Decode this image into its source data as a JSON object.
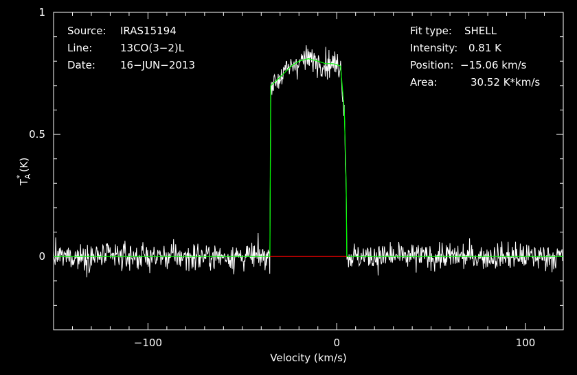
{
  "info_left": {
    "source_label": "Source:",
    "source_value": "IRAS15194",
    "line_label": "Line:",
    "line_value": "13CO(3-2)L",
    "date_label": "Date:",
    "date_value": "16-JUN-2013"
  },
  "info_right": {
    "fit_label": "Fit type:",
    "fit_value": "SHELL",
    "intensity_label": "Intensity:",
    "intensity_value": "0.81 K",
    "position_label": "Position:",
    "position_value": "-15.06 km/s",
    "area_label": "Area:",
    "area_value": "30.52 K*km/s"
  },
  "colors": {
    "background": "#000000",
    "axes": "#ffffff",
    "spectrum": "#ffffff",
    "fit": "#00ff00",
    "fit_baseline": "#ff0000"
  },
  "chart_data": {
    "type": "line",
    "xlabel": "Velocity (km/s)",
    "ylabel_main": "T",
    "ylabel_sup": "*",
    "ylabel_sub": "A",
    "ylabel_unit": "(K)",
    "xlim": [
      -150,
      120
    ],
    "ylim": [
      -0.3,
      1.0
    ],
    "x_ticks": [
      -100,
      0,
      100
    ],
    "x_tick_labels": [
      "-100",
      "0",
      "100"
    ],
    "y_ticks": [
      0,
      0.5,
      1
    ],
    "y_tick_labels": [
      "0",
      "0.5",
      "1"
    ],
    "x_minor_step": 10,
    "y_minor_step": 0.1,
    "grid": false,
    "series": [
      {
        "name": "",
        "kind": "spectrum",
        "noise_rms": 0.07,
        "points": [
          [
            -150,
            0.05
          ],
          [
            -140,
            -0.03
          ],
          [
            -130,
            0.04
          ],
          [
            -120,
            -0.06
          ],
          [
            -110,
            0.06
          ],
          [
            -100,
            -0.02
          ],
          [
            -90,
            0.03
          ],
          [
            -80,
            -0.05
          ],
          [
            -70,
            0.02
          ],
          [
            -60,
            0.05
          ],
          [
            -50,
            -0.04
          ],
          [
            -40,
            0.06
          ],
          [
            -36,
            0.02
          ],
          [
            -34,
            0.7
          ],
          [
            -30,
            0.8
          ],
          [
            -25,
            0.82
          ],
          [
            -20,
            0.8
          ],
          [
            -15,
            0.78
          ],
          [
            -10,
            0.82
          ],
          [
            -5,
            0.8
          ],
          [
            0,
            0.79
          ],
          [
            3,
            0.75
          ],
          [
            5,
            0.02
          ],
          [
            10,
            -0.06
          ],
          [
            20,
            0.03
          ],
          [
            30,
            -0.04
          ],
          [
            40,
            0.05
          ],
          [
            50,
            0.01
          ],
          [
            60,
            -0.04
          ],
          [
            70,
            0.04
          ],
          [
            80,
            -0.02
          ],
          [
            90,
            0.03
          ],
          [
            100,
            -0.05
          ],
          [
            110,
            0.04
          ],
          [
            120,
            0.02
          ]
        ]
      },
      {
        "name": "",
        "kind": "fit",
        "points": [
          [
            -150,
            0
          ],
          [
            -35.4,
            0
          ],
          [
            -35,
            0.7
          ],
          [
            -32,
            0.72
          ],
          [
            -28,
            0.75
          ],
          [
            -24,
            0.78
          ],
          [
            -20,
            0.8
          ],
          [
            -15,
            0.81
          ],
          [
            -10,
            0.8
          ],
          [
            -6,
            0.79
          ],
          [
            -2,
            0.79
          ],
          [
            2,
            0.78
          ],
          [
            4,
            0.6
          ],
          [
            5,
            0.3
          ],
          [
            5.3,
            0
          ],
          [
            120,
            0
          ]
        ]
      },
      {
        "name": "",
        "kind": "baseline",
        "points": [
          [
            -35.4,
            0
          ],
          [
            5.3,
            0
          ]
        ]
      }
    ]
  }
}
